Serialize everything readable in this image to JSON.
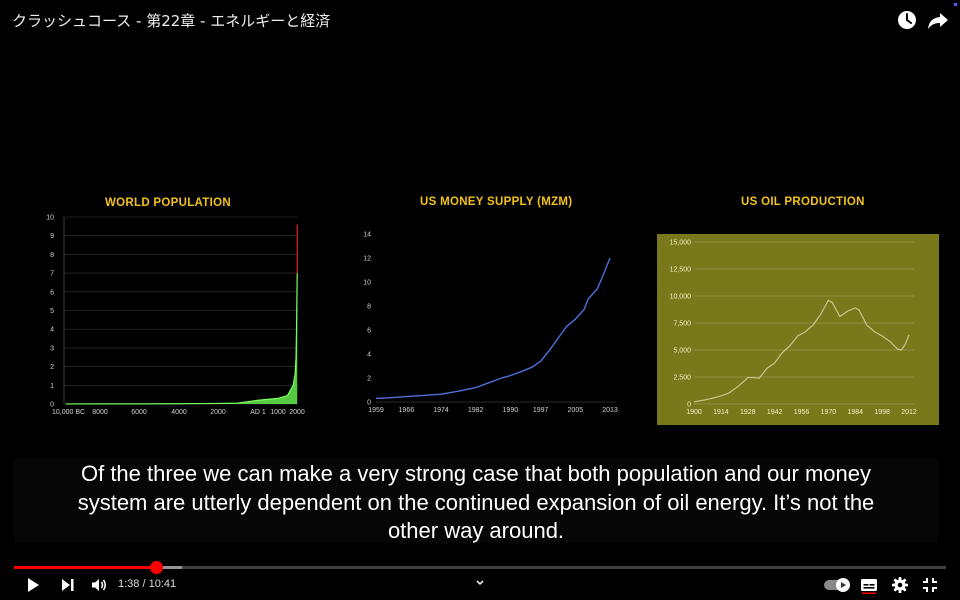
{
  "video": {
    "title": "クラッシュコース - 第22章 - エネルギーと経済"
  },
  "player": {
    "current_time": "1:38",
    "duration": "10:41",
    "time_separator": " / ",
    "progress_fraction": 0.153,
    "buffered_fraction": 0.18,
    "accent_color": "#ff0000",
    "icons": [
      "watch-later-icon",
      "share-icon",
      "play-icon",
      "next-icon",
      "volume-icon",
      "chevron-down-icon",
      "autoplay-toggle-icon",
      "captions-icon",
      "settings-icon",
      "exit-fullscreen-icon"
    ]
  },
  "captions": {
    "lines": [
      "Of the three we can make a very strong case that both population and our money",
      "system are utterly dependent on the continued expansion of oil energy. It’s not the",
      "other way around."
    ]
  },
  "chart_data": [
    {
      "type": "area",
      "title": "WORLD POPULATION",
      "x_tick_labels": [
        "10,000 BC",
        "8000",
        "6000",
        "4000",
        "2000",
        "AD 1",
        "1000",
        "2000"
      ],
      "y_ticks": [
        0,
        1,
        2,
        3,
        4,
        5,
        6,
        7,
        8,
        9,
        10
      ],
      "ylim": [
        0,
        10
      ],
      "x": [
        -10000,
        -8000,
        -6000,
        -4000,
        -2000,
        -1000,
        1,
        1000,
        1500,
        1800,
        1900,
        1950,
        1975,
        2000,
        2012
      ],
      "values": [
        0.004,
        0.005,
        0.007,
        0.012,
        0.03,
        0.05,
        0.2,
        0.3,
        0.45,
        1.0,
        1.6,
        2.5,
        4.0,
        6.1,
        7.0
      ],
      "projection_to": 9.6,
      "grid": true,
      "colors": {
        "fill": "#5fe04a",
        "line": "#7aff5f",
        "projection": "#c02020"
      }
    },
    {
      "type": "line",
      "title": "US MONEY SUPPLY (MZM)",
      "x_tick_labels": [
        "1959",
        "1966",
        "1974",
        "1982",
        "1990",
        "1997",
        "2005",
        "2013"
      ],
      "y_ticks": [
        0,
        2,
        4,
        6,
        8,
        10,
        12,
        14
      ],
      "ylim": [
        0,
        14
      ],
      "x": [
        1959,
        1962,
        1966,
        1970,
        1974,
        1978,
        1982,
        1985,
        1988,
        1990,
        1993,
        1995,
        1997,
        1999,
        2001,
        2003,
        2005,
        2007,
        2008,
        2009,
        2010,
        2011,
        2012,
        2013
      ],
      "values": [
        0.3,
        0.35,
        0.45,
        0.55,
        0.65,
        0.9,
        1.2,
        1.6,
        2.0,
        2.2,
        2.6,
        2.9,
        3.4,
        4.3,
        5.3,
        6.3,
        6.9,
        7.7,
        8.6,
        9.0,
        9.4,
        10.2,
        11.1,
        12.0
      ],
      "grid": false,
      "colors": {
        "line": "#4f6fd8"
      }
    },
    {
      "type": "line",
      "title": "US OIL PRODUCTION",
      "x_tick_labels": [
        "1900",
        "1914",
        "1928",
        "1942",
        "1956",
        "1970",
        "1984",
        "1998",
        "2012"
      ],
      "y_ticks": [
        "0",
        "2,500",
        "5,000",
        "7,500",
        "10,000",
        "12,500",
        "15,000"
      ],
      "ylim": [
        0,
        15000
      ],
      "x": [
        1900,
        1905,
        1910,
        1914,
        1918,
        1922,
        1926,
        1928,
        1930,
        1934,
        1938,
        1942,
        1946,
        1950,
        1954,
        1958,
        1962,
        1966,
        1970,
        1972,
        1976,
        1980,
        1984,
        1986,
        1990,
        1994,
        1998,
        2002,
        2006,
        2008,
        2010,
        2012
      ],
      "values": [
        200,
        350,
        550,
        750,
        1000,
        1500,
        2100,
        2450,
        2450,
        2400,
        3300,
        3800,
        4750,
        5400,
        6300,
        6700,
        7300,
        8300,
        9600,
        9400,
        8100,
        8600,
        8900,
        8700,
        7300,
        6700,
        6300,
        5800,
        5100,
        5000,
        5500,
        6400
      ],
      "grid": true,
      "colors": {
        "background": "#79781b",
        "line": "#c8c88f",
        "grid": "#a8a86a"
      }
    }
  ]
}
